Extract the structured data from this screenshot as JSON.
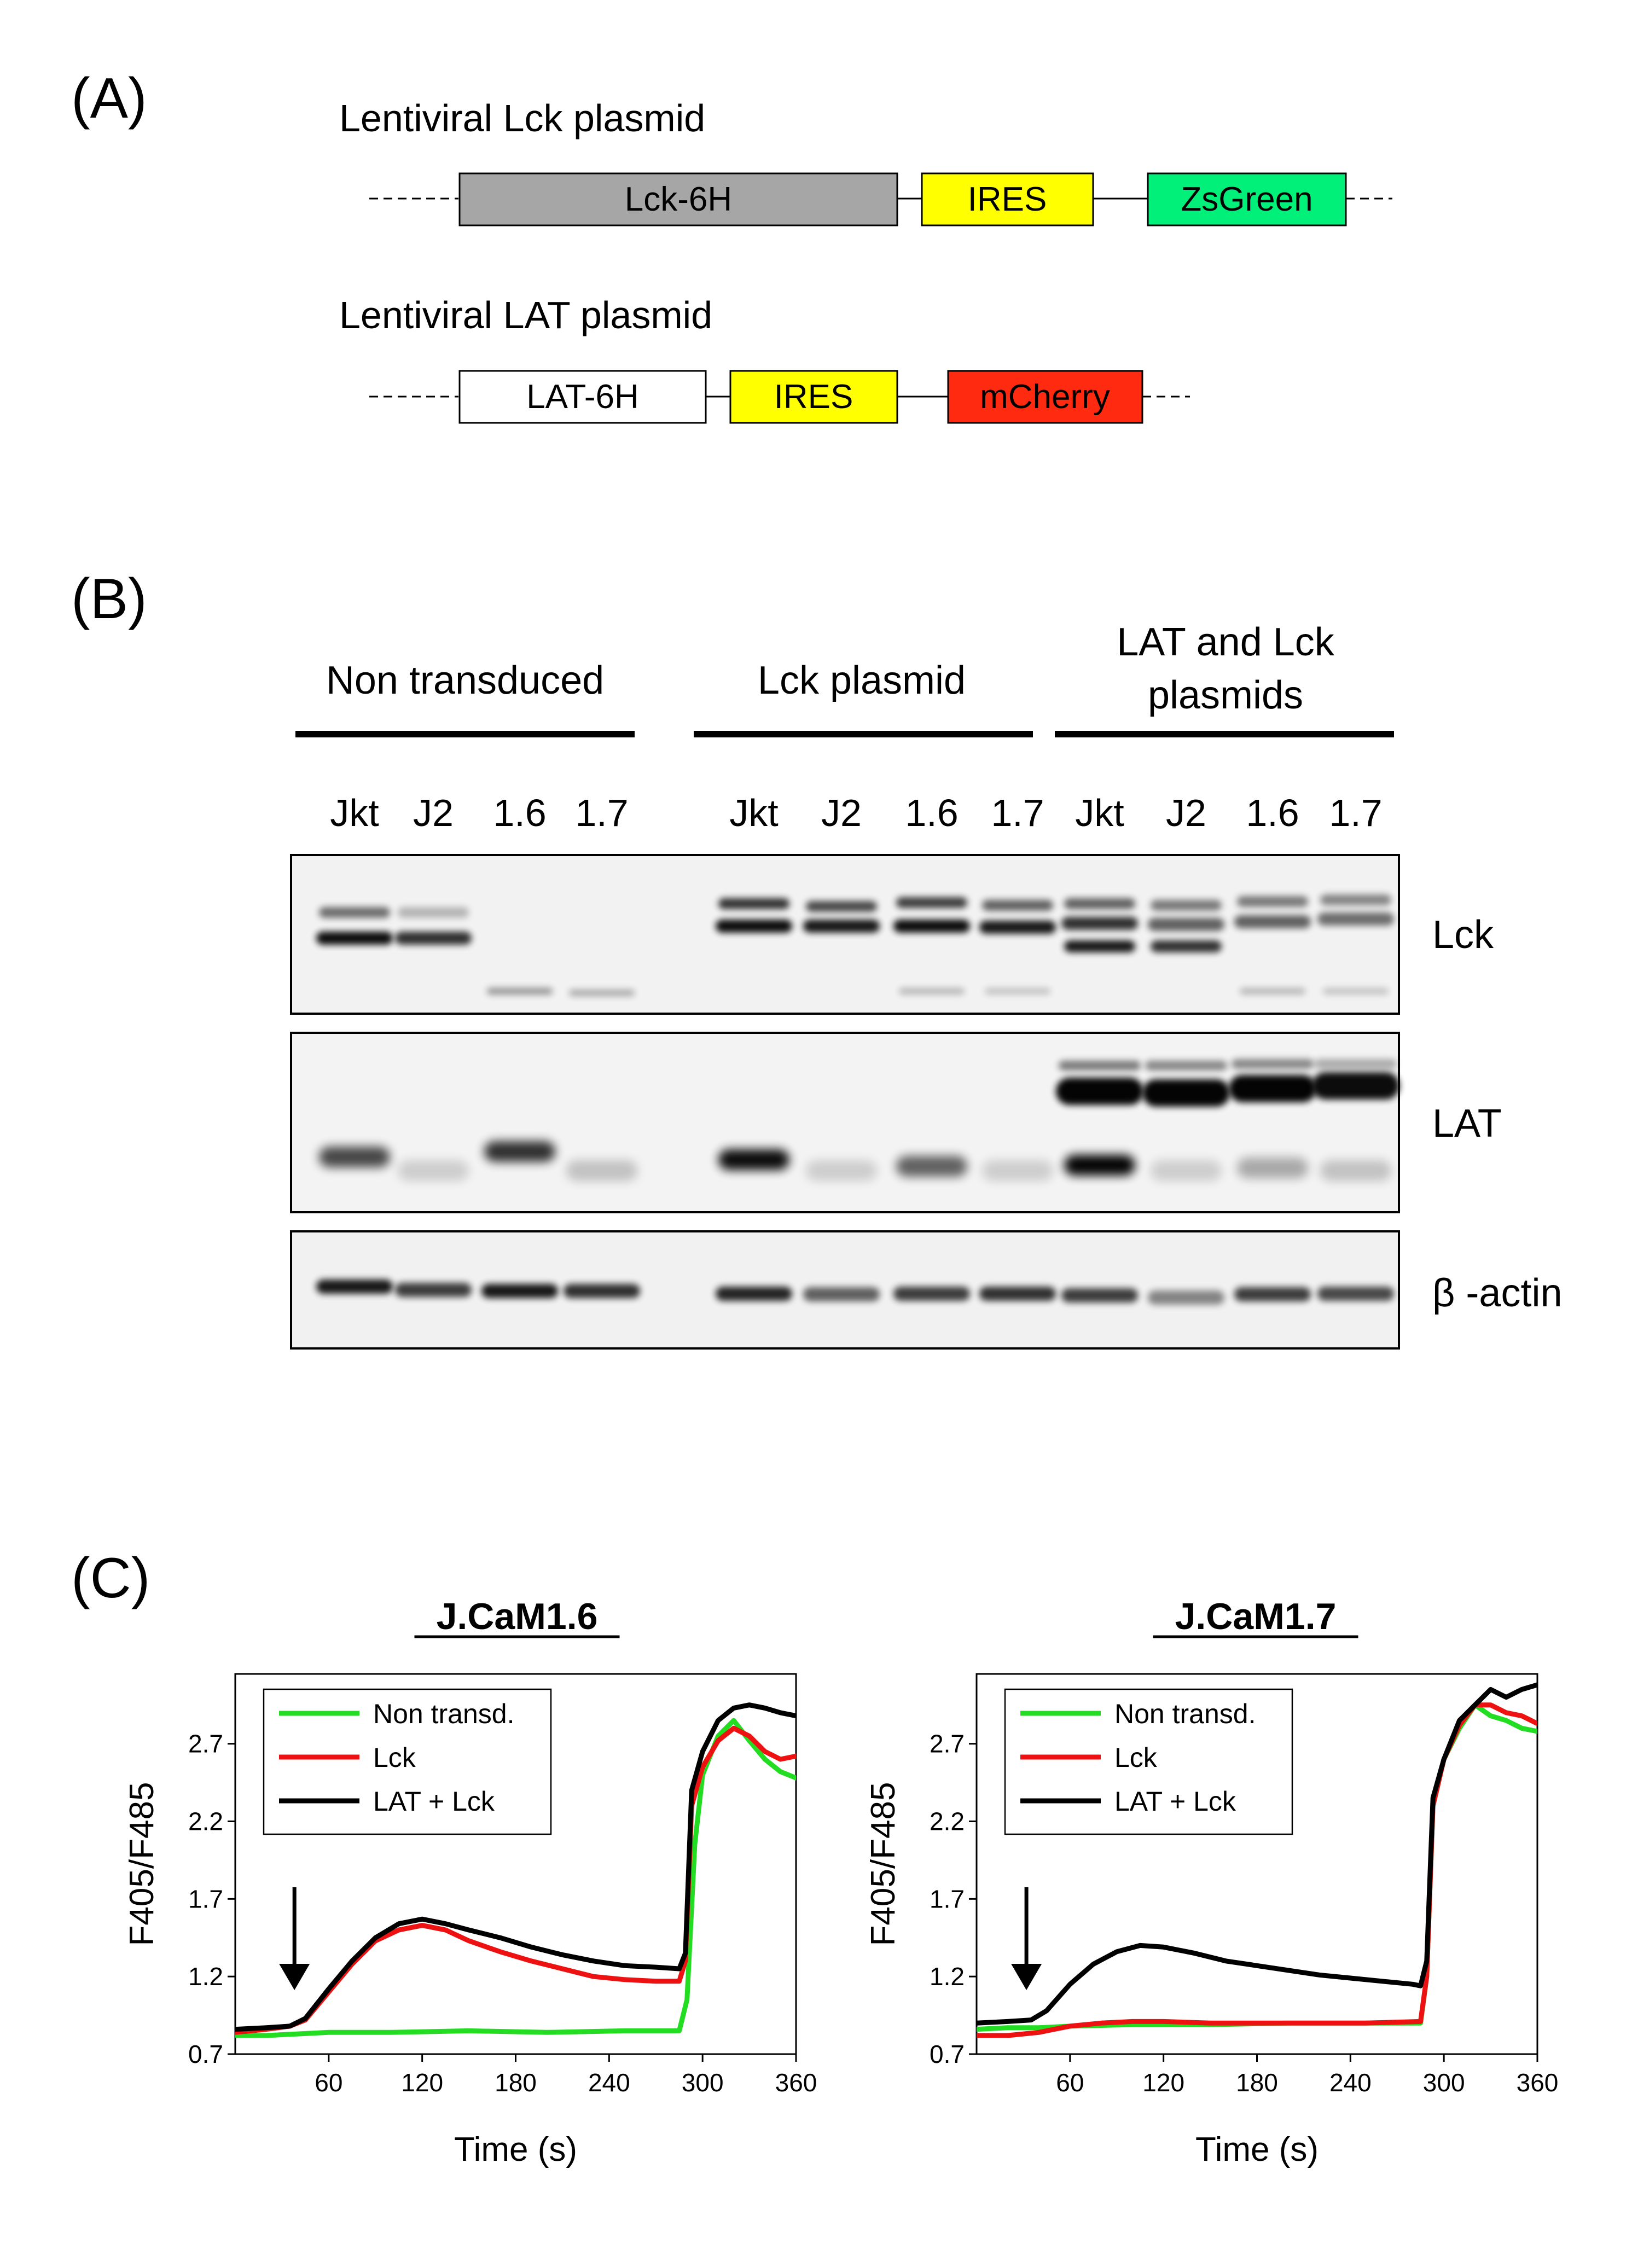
{
  "panel_a": {
    "label": "(A)",
    "plasmid1": {
      "title": "Lentiviral Lck plasmid",
      "segments": [
        {
          "label": "Lck-6H",
          "color": "#a6a6a6"
        },
        {
          "label": "IRES",
          "color": "#ffff00"
        },
        {
          "label": "ZsGreen",
          "color": "#00f07a"
        }
      ]
    },
    "plasmid2": {
      "title": "Lentiviral LAT plasmid",
      "segments": [
        {
          "label": "LAT-6H",
          "color": "#ffffff"
        },
        {
          "label": "IRES",
          "color": "#ffff00"
        },
        {
          "label": "mCherry",
          "color": "#ff2a10"
        }
      ]
    }
  },
  "panel_b": {
    "label": "(B)",
    "groups": [
      {
        "label": "Non transduced"
      },
      {
        "label": "Lck plasmid"
      },
      {
        "label_line1": "LAT and Lck",
        "label_line2": "plasmids"
      }
    ],
    "lanes": [
      "Jkt",
      "J2",
      "1.6",
      "1.7",
      "Jkt",
      "J2",
      "1.6",
      "1.7",
      "Jkt",
      "J2",
      "1.6",
      "1.7"
    ],
    "blots": [
      {
        "label": "Lck"
      },
      {
        "label": "LAT"
      },
      {
        "label": "β -actin"
      }
    ]
  },
  "panel_c": {
    "label": "(C)",
    "chart_data": [
      {
        "type": "line",
        "title": "J.CaM1.6",
        "xlabel": "Time (s)",
        "ylabel": "F405/F485",
        "xlim": [
          0,
          360
        ],
        "ylim": [
          0.7,
          3.15
        ],
        "xticks": [
          60,
          120,
          180,
          240,
          300,
          360
        ],
        "yticks": [
          0.7,
          1.2,
          1.7,
          2.2,
          2.7
        ],
        "stimulus_arrow_x": 38,
        "legend": "top-left",
        "series": [
          {
            "name": "Non transd.",
            "color": "#22dd22",
            "x": [
              0,
              20,
              40,
              60,
              100,
              150,
              200,
              250,
              285,
              290,
              295,
              300,
              310,
              320,
              330,
              340,
              350,
              360
            ],
            "y": [
              0.82,
              0.82,
              0.83,
              0.84,
              0.84,
              0.85,
              0.84,
              0.85,
              0.85,
              1.05,
              2.05,
              2.5,
              2.75,
              2.85,
              2.72,
              2.6,
              2.52,
              2.48
            ]
          },
          {
            "name": "Lck",
            "color": "#ee1111",
            "x": [
              0,
              20,
              35,
              45,
              60,
              75,
              90,
              105,
              120,
              135,
              150,
              170,
              190,
              210,
              230,
              250,
              270,
              285,
              289,
              293,
              300,
              310,
              320,
              330,
              340,
              350,
              360
            ],
            "y": [
              0.84,
              0.86,
              0.88,
              0.92,
              1.1,
              1.28,
              1.43,
              1.5,
              1.53,
              1.5,
              1.43,
              1.36,
              1.3,
              1.25,
              1.2,
              1.18,
              1.17,
              1.17,
              1.3,
              2.3,
              2.55,
              2.72,
              2.8,
              2.75,
              2.65,
              2.6,
              2.62
            ]
          },
          {
            "name": "LAT + Lck",
            "color": "#000000",
            "x": [
              0,
              20,
              35,
              45,
              60,
              75,
              90,
              105,
              120,
              135,
              150,
              170,
              190,
              210,
              230,
              250,
              270,
              285,
              289,
              293,
              300,
              310,
              320,
              330,
              340,
              350,
              360
            ],
            "y": [
              0.86,
              0.87,
              0.88,
              0.93,
              1.12,
              1.3,
              1.45,
              1.54,
              1.57,
              1.54,
              1.5,
              1.45,
              1.39,
              1.34,
              1.3,
              1.27,
              1.26,
              1.25,
              1.35,
              2.4,
              2.65,
              2.85,
              2.93,
              2.95,
              2.93,
              2.9,
              2.88
            ]
          }
        ]
      },
      {
        "type": "line",
        "title": "J.CaM1.7",
        "xlabel": "Time (s)",
        "ylabel": "F405/F485",
        "xlim": [
          0,
          360
        ],
        "ylim": [
          0.7,
          3.15
        ],
        "xticks": [
          60,
          120,
          180,
          240,
          300,
          360
        ],
        "yticks": [
          0.7,
          1.2,
          1.7,
          2.2,
          2.7
        ],
        "stimulus_arrow_x": 32,
        "legend": "top-left",
        "series": [
          {
            "name": "Non transd.",
            "color": "#22dd22",
            "x": [
              0,
              20,
              40,
              60,
              100,
              150,
              200,
              250,
              285,
              289,
              293,
              300,
              310,
              320,
              330,
              340,
              350,
              360
            ],
            "y": [
              0.86,
              0.87,
              0.87,
              0.88,
              0.89,
              0.89,
              0.9,
              0.9,
              0.9,
              1.2,
              2.3,
              2.6,
              2.8,
              2.95,
              2.88,
              2.85,
              2.8,
              2.78
            ]
          },
          {
            "name": "Lck",
            "color": "#ee1111",
            "x": [
              0,
              20,
              40,
              60,
              80,
              100,
              120,
              150,
              200,
              250,
              285,
              289,
              293,
              300,
              310,
              320,
              330,
              340,
              350,
              360
            ],
            "y": [
              0.82,
              0.82,
              0.84,
              0.88,
              0.9,
              0.91,
              0.91,
              0.9,
              0.9,
              0.9,
              0.91,
              1.2,
              2.3,
              2.6,
              2.82,
              2.95,
              2.95,
              2.9,
              2.88,
              2.83
            ]
          },
          {
            "name": "LAT + Lck",
            "color": "#000000",
            "x": [
              0,
              20,
              35,
              45,
              60,
              75,
              90,
              105,
              120,
              140,
              160,
              180,
              200,
              220,
              240,
              260,
              280,
              285,
              289,
              293,
              300,
              310,
              320,
              330,
              340,
              350,
              360
            ],
            "y": [
              0.9,
              0.91,
              0.92,
              0.98,
              1.15,
              1.28,
              1.36,
              1.4,
              1.39,
              1.35,
              1.3,
              1.27,
              1.24,
              1.21,
              1.19,
              1.17,
              1.15,
              1.14,
              1.3,
              2.35,
              2.6,
              2.85,
              2.95,
              3.05,
              3.0,
              3.05,
              3.08
            ]
          }
        ]
      }
    ]
  }
}
